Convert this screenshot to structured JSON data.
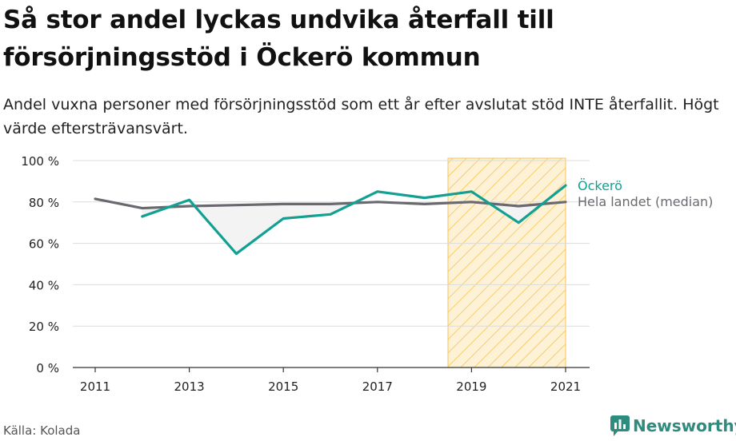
{
  "title": "Så stor andel lyckas undvika återfall till försörjningsstöd i Öckerö kommun",
  "subtitle": "Andel vuxna personer med försörjningsstöd som ett år efter avslutat stöd INTE återfallit. Högt värde eftersträvansvärt.",
  "source": "Källa: Kolada",
  "brand": {
    "name": "Newsworthy",
    "icon": "newsworthy-bar-chart-icon"
  },
  "colors": {
    "ockero": "#12a093",
    "median": "#6b6970",
    "highlight": "#f6c453",
    "highlight_fill": "#fdf1d6",
    "gap_fill": "#f3f3f3"
  },
  "chart_data": {
    "type": "line",
    "x": [
      2011,
      2012,
      2013,
      2014,
      2015,
      2016,
      2017,
      2018,
      2019,
      2020,
      2021
    ],
    "x_ticks": [
      2011,
      2013,
      2015,
      2017,
      2019,
      2021
    ],
    "y_ticks": [
      0,
      20,
      40,
      60,
      80,
      100
    ],
    "y_tick_labels": [
      "0 %",
      "20 %",
      "40 %",
      "60 %",
      "80 %",
      "100 %"
    ],
    "ylim": [
      0,
      100
    ],
    "grid": true,
    "series": [
      {
        "name": "Öckerö",
        "color": "#12a093",
        "values": [
          null,
          73,
          81,
          55,
          72,
          74,
          85,
          82,
          85,
          70,
          88
        ]
      },
      {
        "name": "Hela landet (median)",
        "color": "#6b6970",
        "values": [
          81.5,
          77,
          78,
          78.5,
          79,
          79,
          80,
          79,
          80,
          78,
          80
        ]
      }
    ],
    "highlight_band": {
      "from": 2018.5,
      "to": 2021
    }
  }
}
